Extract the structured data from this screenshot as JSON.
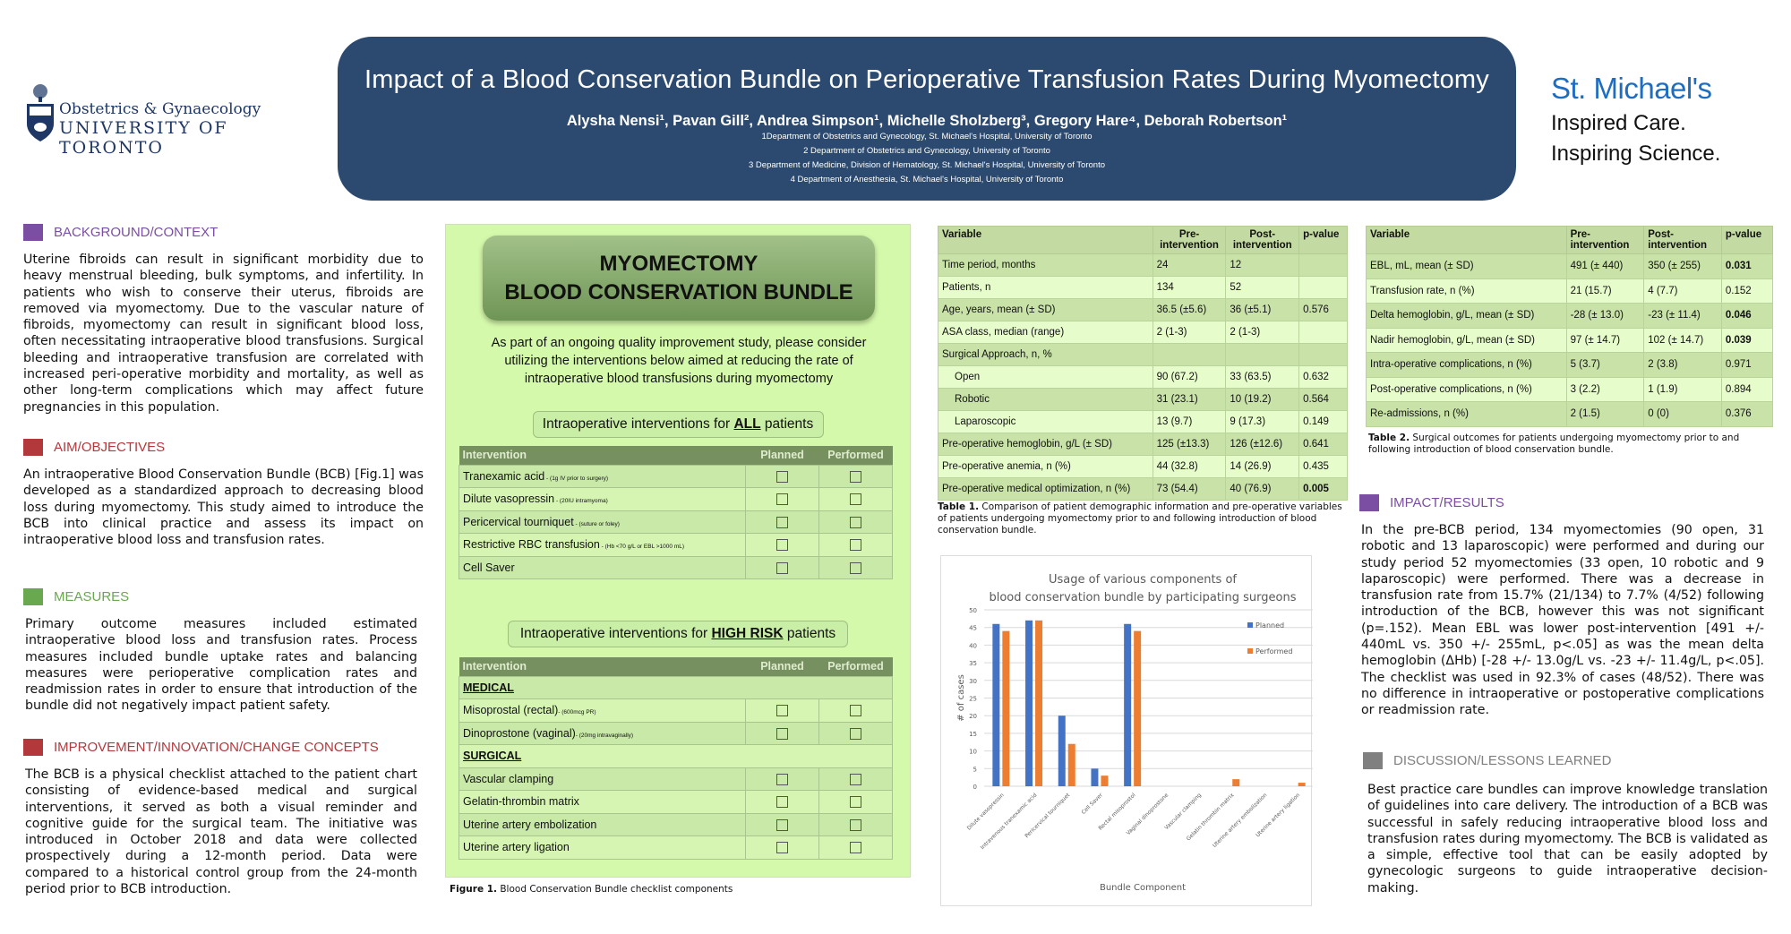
{
  "header": {
    "title": "Impact of a Blood Conservation Bundle on Perioperative Transfusion Rates During Myomectomy",
    "authors": "Alysha Nensi¹, Pavan Gill², Andrea Simpson¹, Michelle Sholzberg³, Gregory Hare⁴, Deborah Robertson¹",
    "affiliations": [
      "1Department of Obstetrics and Gynecology, St. Michael's Hospital, University of Toronto",
      "2 Department of Obstetrics and Gynecology, University of Toronto",
      "3 Department of Medicine, Division of Hematology, St. Michael's Hospital, University of Toronto",
      "4 Department of Anesthesia, St. Michael's Hospital, University of Toronto"
    ]
  },
  "logos": {
    "uoft_line1": "Obstetrics & Gynaecology",
    "uoft_line2": "UNIVERSITY OF TORONTO",
    "smh_name": "St. Michael's",
    "smh_tag1": "Inspired Care.",
    "smh_tag2": "Inspiring Science."
  },
  "colors": {
    "banner": "#2c4a6f",
    "purple": "#7b4ea3",
    "red": "#b3383c",
    "green": "#6aa84f",
    "gray": "#808080",
    "planned": "#4472c4",
    "performed": "#ed7d31"
  },
  "sections": {
    "background": {
      "title": "BACKGROUND/CONTEXT",
      "text": "Uterine fibroids can result in significant morbidity due to heavy menstrual bleeding, bulk symptoms, and infertility. In patients who wish to conserve their uterus, fibroids are removed via myomectomy. Due to the vascular nature of fibroids, myomectomy can result in significant blood loss, often necessitating intraoperative blood transfusions. Surgical bleeding and intraoperative transfusion are correlated with increased peri-operative morbidity and mortality, as well as other long-term complications which may affect future pregnancies in this population."
    },
    "aim": {
      "title": "AIM/OBJECTIVES",
      "text": "An intraoperative Blood Conservation Bundle (BCB) [Fig.1] was developed as a standardized approach to decreasing blood loss during myomectomy. This study aimed to introduce the BCB into clinical practice and assess its impact on intraoperative blood loss and transfusion rates."
    },
    "measures": {
      "title": "MEASURES",
      "text": "Primary outcome measures included estimated intraoperative blood loss and transfusion rates. Process measures included bundle uptake rates and balancing measures were perioperative complication rates and readmission rates in order to ensure that introduction of the bundle did not negatively impact patient safety."
    },
    "improvement": {
      "title": "IMPROVEMENT/INNOVATION/CHANGE CONCEPTS",
      "text": "The BCB is a physical checklist attached to the patient chart consisting of evidence-based medical and surgical interventions, it served as both a visual reminder and cognitive guide for the surgical team. The initiative was introduced in October 2018 and data were collected prospectively during a 12-month period. Data were compared to a historical control group from the 24-month period prior to BCB introduction."
    },
    "impact": {
      "title": "IMPACT/RESULTS",
      "text": "In the pre-BCB period, 134 myomectomies (90 open, 31 robotic and 13 laparoscopic) were performed and during our study period 52 myomectomies (33 open, 10 robotic and 9 laparoscopic) were performed. There was a decrease in transfusion rate from 15.7% (21/134) to 7.7% (4/52) following introduction of the BCB, however this was not significant (p=.152). Mean EBL was lower post-intervention [491 +/- 440mL vs. 350 +/- 255mL, p<.05] as was the mean delta hemoglobin (ΔHb) [-28 +/- 13.0g/L vs. -23 +/- 11.4g/L, p<.05]. The checklist was used in 92.3% of cases (48/52).  There was no difference in intraoperative or postoperative complications or readmission rate."
    },
    "discussion": {
      "title": "DISCUSSION/LESSONS LEARNED",
      "text": "Best practice care bundles can improve knowledge translation of guidelines into care delivery.  The introduction of a BCB was successful in safely reducing intraoperative blood loss and transfusion rates during myomectomy. The BCB is validated as a simple, effective tool that can be easily adopted by gynecologic surgeons to guide intraoperative decision-making."
    }
  },
  "figure1": {
    "title1": "MYOMECTOMY",
    "title2": "BLOOD CONSERVATION BUNDLE",
    "intro": "As part of an ongoing quality improvement study, please consider utilizing the interventions below aimed at reducing the rate of intraoperative blood transfusions during myomectomy",
    "all_pre": "Intraoperative interventions for ",
    "all_em": "ALL",
    "all_post": " patients",
    "high_pre": "Intraoperative interventions for ",
    "high_em": "HIGH RISK",
    "high_post": " patients",
    "col_intervention": "Intervention",
    "col_planned": "Planned",
    "col_performed": "Performed",
    "all_rows": [
      {
        "name": "Tranexamic acid",
        "note": " - (1g IV prior to surgery)"
      },
      {
        "name": "Dilute vasopressin",
        "note": " - (20IU intramyoma)"
      },
      {
        "name": "Pericervical tourniquet",
        "note": " - (suture or foley)"
      },
      {
        "name": "Restrictive RBC transfusion",
        "note": " - (Hb <70 g/L or EBL >1000 mL)"
      },
      {
        "name": "Cell Saver",
        "note": ""
      }
    ],
    "medical_label": "MEDICAL",
    "surgical_label": "SURGICAL",
    "medical_rows": [
      {
        "name": "Misoprostal (rectal)",
        "note": "- (600mcg PR)"
      },
      {
        "name": "Dinoprostone (vaginal)",
        "note": "- (20mg intravaginally)"
      }
    ],
    "surgical_rows": [
      {
        "name": "Vascular clamping"
      },
      {
        "name": "Gelatin-thrombin matrix"
      },
      {
        "name": "Uterine artery embolization"
      },
      {
        "name": "Uterine artery ligation"
      }
    ],
    "caption_label": "Figure 1.",
    "caption": " Blood Conservation Bundle checklist components"
  },
  "table1": {
    "headers": [
      "Variable",
      "Pre-\nintervention",
      "Post-\nintervention",
      "p-value"
    ],
    "rows": [
      [
        "Time period, months",
        "24",
        "12",
        ""
      ],
      [
        "Patients, n",
        "134",
        "52",
        ""
      ],
      [
        "Age, years, mean (± SD)",
        "36.5 (±5.6)",
        "36 (±5.1)",
        "0.576"
      ],
      [
        "ASA class, median (range)",
        "2 (1-3)",
        "2 (1-3)",
        ""
      ],
      [
        "Surgical Approach, n, %",
        "",
        "",
        ""
      ],
      [
        "Open",
        "90 (67.2)",
        "33 (63.5)",
        "0.632"
      ],
      [
        "Robotic",
        "31 (23.1)",
        "10 (19.2)",
        "0.564"
      ],
      [
        "Laparoscopic",
        "13 (9.7)",
        "9 (17.3)",
        "0.149"
      ],
      [
        "Pre-operative hemoglobin, g/L (± SD)",
        "125 (±13.3)",
        "126 (±12.6)",
        "0.641"
      ],
      [
        "Pre-operative anemia, n (%)",
        "44 (32.8)",
        "14 (26.9)",
        "0.435"
      ],
      [
        "Pre-operative medical optimization, n (%)",
        "73 (54.4)",
        "40 (76.9)",
        "0.005"
      ]
    ],
    "caption_label": "Table 1.",
    "caption": " Comparison of patient demographic information and pre-operative variables of patients undergoing myomectomy prior to and following introduction of blood conservation bundle."
  },
  "table2": {
    "headers": [
      "Variable",
      "Pre-\nintervention",
      "Post-\nintervention",
      "p-value"
    ],
    "rows": [
      [
        "EBL, mL, mean (± SD)",
        "491 (± 440)",
        "350 (± 255)",
        "0.031"
      ],
      [
        "Transfusion rate, n (%)",
        "21 (15.7)",
        "4 (7.7)",
        "0.152"
      ],
      [
        "Delta hemoglobin, g/L, mean (± SD)",
        "-28 (± 13.0)",
        "-23 (± 11.4)",
        "0.046"
      ],
      [
        "Nadir hemoglobin, g/L, mean (± SD)",
        "97 (± 14.7)",
        "102 (± 14.7)",
        "0.039"
      ],
      [
        "Intra-operative complications, n (%)",
        "5 (3.7)",
        "2 (3.8)",
        "0.971"
      ],
      [
        "Post-operative complications, n (%)",
        "3 (2.2)",
        "1 (1.9)",
        "0.894"
      ],
      [
        "Re-admissions, n (%)",
        "2 (1.5)",
        "0 (0)",
        "0.376"
      ]
    ],
    "caption_label": "Table 2.",
    "caption": " Surgical outcomes for patients undergoing myomectomy prior to and following introduction of blood conservation bundle."
  },
  "chart_data": {
    "type": "bar",
    "title": "Usage of various components of blood conservation bundle by participating surgeons",
    "xlabel": "Bundle Component",
    "ylabel": "# of cases",
    "ylim": [
      0,
      50
    ],
    "yticks": [
      0,
      5,
      10,
      15,
      20,
      25,
      30,
      35,
      40,
      45,
      50
    ],
    "grid": true,
    "legend": "top-right",
    "categories": [
      "Dilute vasopressin",
      "Intravenous tranexamic acid",
      "Pericervical tourniquet",
      "Cell Saver",
      "Rectal misoprostol",
      "Vaginal dinoprostone",
      "Vascular clamping",
      "Gelatin thrombin matrix",
      "Uterine artery embolization",
      "Uterine artery ligation"
    ],
    "series": [
      {
        "name": "Planned",
        "color": "#4472c4",
        "values": [
          46,
          47,
          20,
          5,
          46,
          0,
          0,
          0,
          0,
          0
        ]
      },
      {
        "name": "Performed",
        "color": "#ed7d31",
        "values": [
          44,
          47,
          12,
          3,
          44,
          0,
          0,
          2,
          0,
          1
        ]
      }
    ]
  }
}
